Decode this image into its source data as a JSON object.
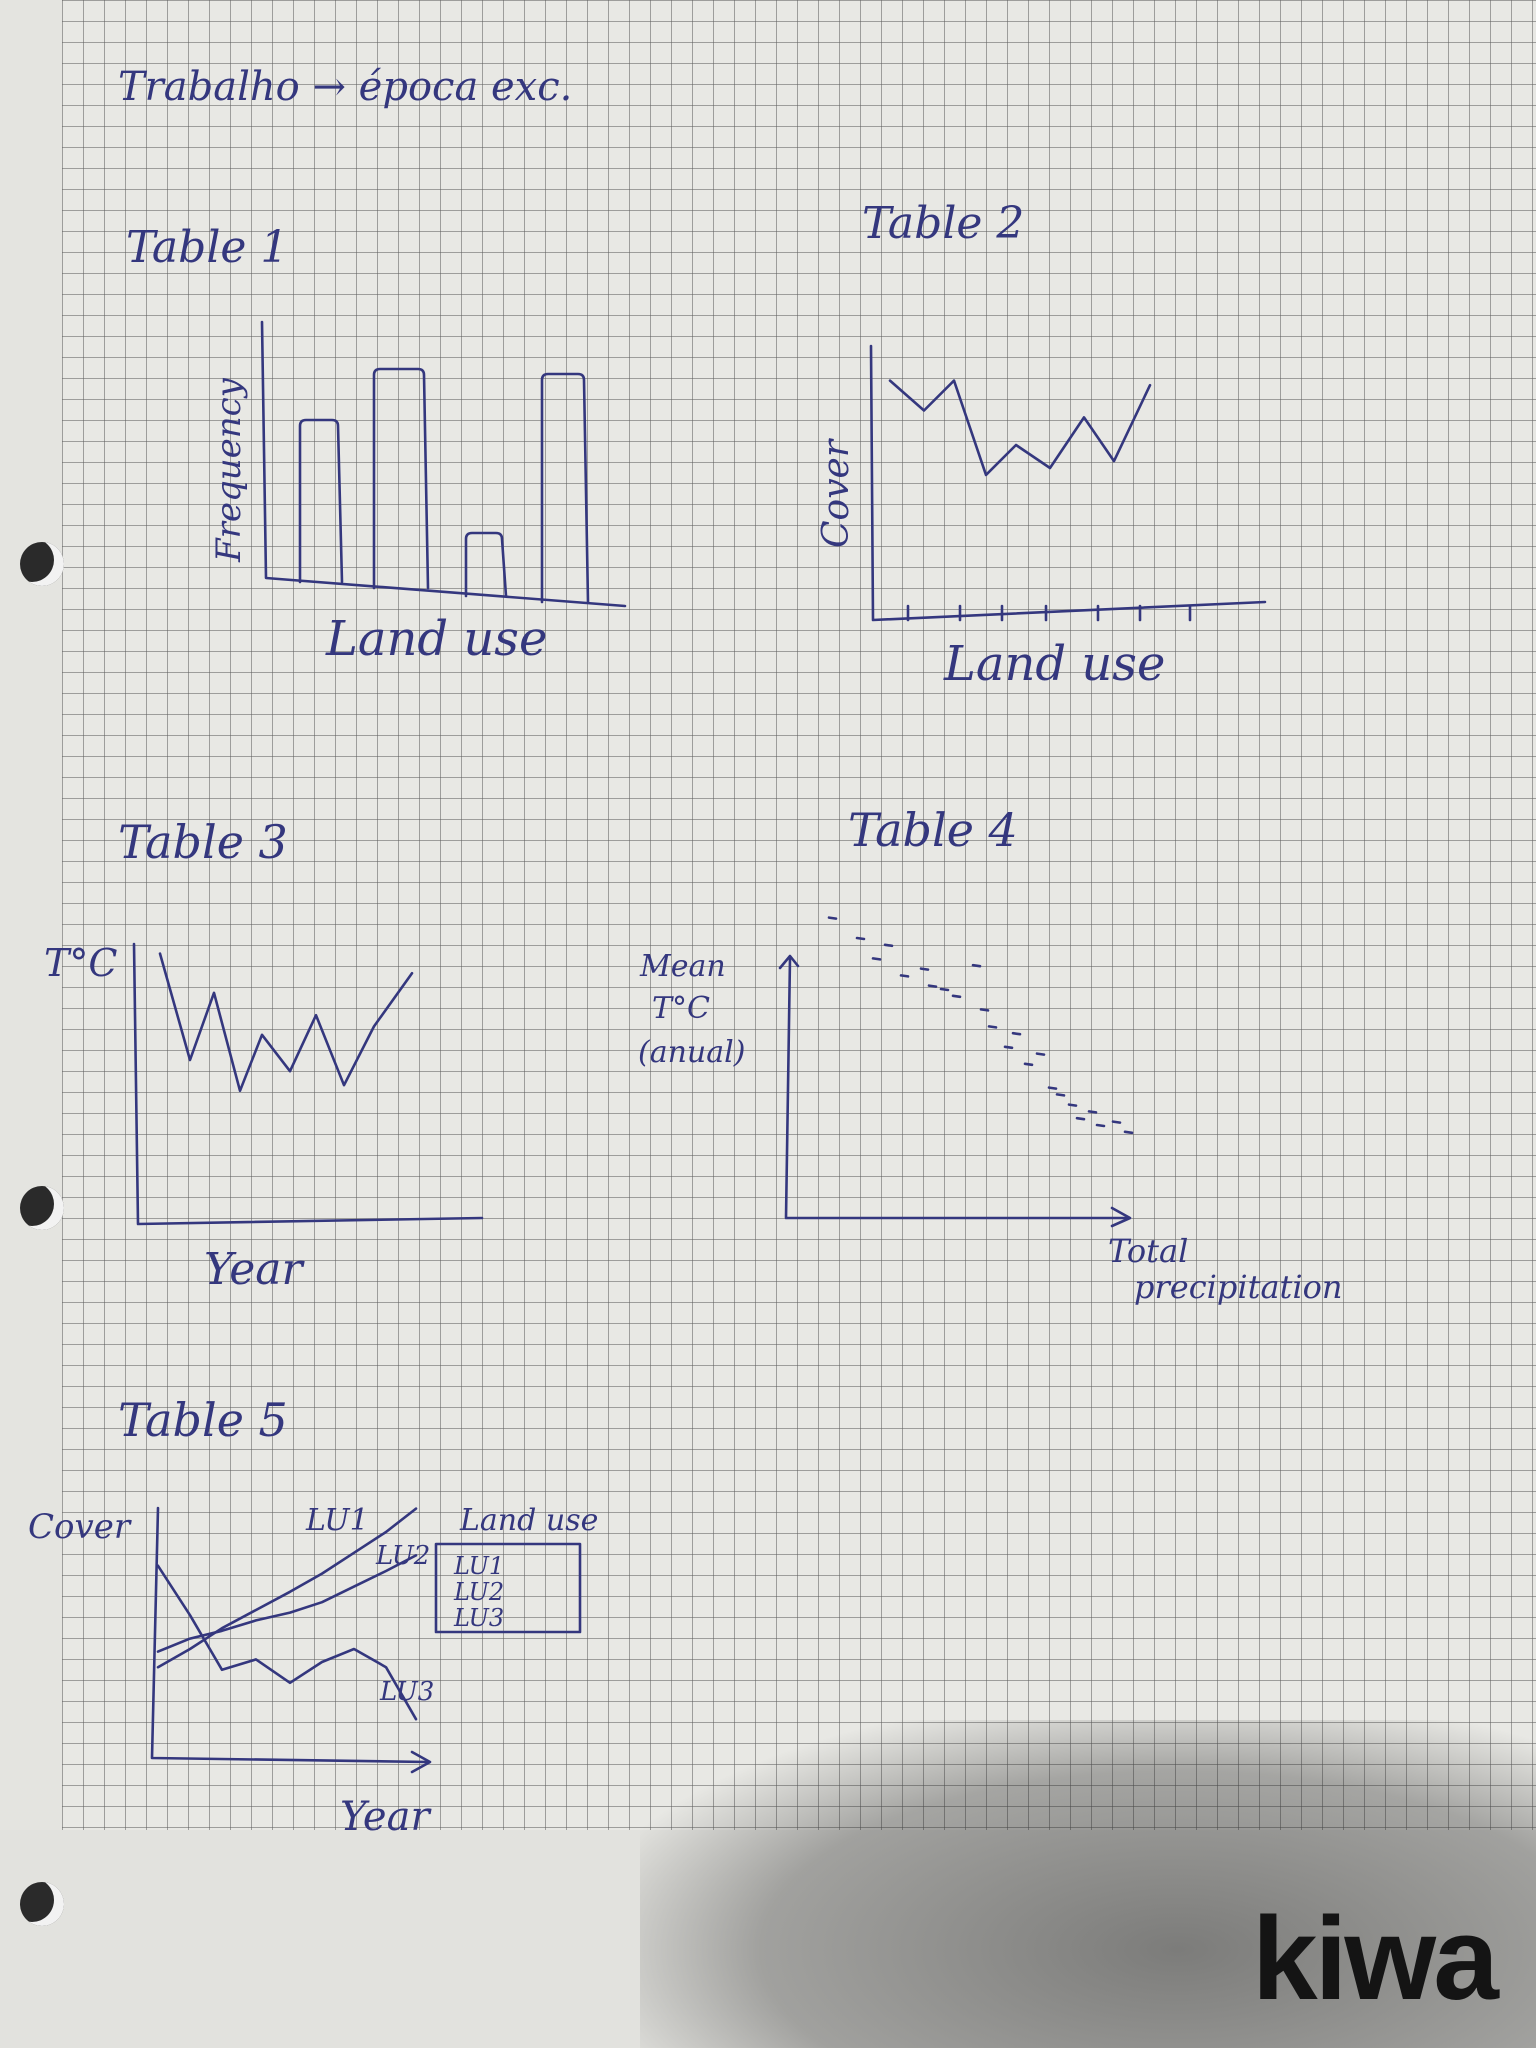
{
  "heading": "Trabalho → época exc.",
  "tables": [
    {
      "title": "Table 1",
      "ylabel": "Frequency",
      "xlabel": "Land use"
    },
    {
      "title": "Table 2",
      "ylabel": "Cover",
      "xlabel": "Land use"
    },
    {
      "title": "Table 3",
      "ylabel": "T°C",
      "xlabel": "Year"
    },
    {
      "title": "Table 4",
      "ylabel_lines": [
        "Mean",
        "T°C",
        "(anual)"
      ],
      "xlabel_lines": [
        "Total",
        "precipitation"
      ]
    },
    {
      "title": "Table 5",
      "ylabel": "Cover",
      "xlabel": "Year",
      "series_labels": [
        "LU1",
        "LU2",
        "LU3"
      ],
      "legend": {
        "title": "Land use",
        "items": [
          "LU1",
          "LU2",
          "LU3"
        ]
      }
    }
  ],
  "logo": "kiwa",
  "colors": {
    "ink": "#34377e",
    "paper": "#e8e8e4",
    "grid": "#5f5f5f"
  },
  "chart_data": [
    {
      "type": "bar",
      "title": "Table 1",
      "xlabel": "Land use",
      "ylabel": "Frequency",
      "categories": [
        "",
        "",
        "",
        ""
      ],
      "values": [
        5.4,
        7.3,
        2.1,
        7.6
      ]
    },
    {
      "type": "line",
      "title": "Table 2",
      "xlabel": "Land use",
      "ylabel": "Cover",
      "x": [
        1,
        2,
        3,
        4,
        5,
        6,
        7,
        8,
        9
      ],
      "series": [
        {
          "values": [
            7.8,
            6.5,
            7.8,
            3.7,
            5.0,
            4.0,
            6.2,
            4.3,
            7.6
          ]
        }
      ]
    },
    {
      "type": "line",
      "title": "Table 3",
      "xlabel": "Year",
      "ylabel": "T°C",
      "x": [
        1,
        2,
        3,
        4,
        5,
        6,
        7,
        8,
        9,
        10
      ],
      "series": [
        {
          "values": [
            7.8,
            4.0,
            6.4,
            2.9,
            4.9,
            3.6,
            5.6,
            3.1,
            5.2,
            7.1
          ]
        }
      ]
    },
    {
      "type": "scatter",
      "title": "Table 4",
      "xlabel": "Total precipitation",
      "ylabel": "Mean T°C (anual)",
      "x": [
        0.5,
        1.2,
        1.6,
        1.9,
        2.3,
        2.8,
        3.0,
        3.3,
        3.6,
        4.1,
        4.3,
        4.5,
        4.9,
        5.1,
        5.4,
        5.7,
        6.0,
        6.2,
        6.5,
        6.7,
        7.0,
        7.2,
        7.6,
        7.9
      ],
      "y": [
        8.6,
        8.0,
        7.4,
        7.8,
        6.9,
        7.1,
        6.6,
        6.5,
        6.3,
        7.2,
        5.9,
        5.4,
        4.8,
        5.2,
        4.3,
        4.6,
        3.6,
        3.4,
        3.1,
        2.7,
        2.9,
        2.5,
        2.6,
        2.3
      ]
    },
    {
      "type": "line",
      "title": "Table 5",
      "xlabel": "Year",
      "ylabel": "Cover",
      "legend_title": "Land use",
      "legend_placement": "right",
      "x": [
        0,
        1,
        2,
        3,
        4,
        5,
        6,
        7,
        8
      ],
      "series": [
        {
          "name": "LU1",
          "values": [
            2.8,
            3.5,
            4.3,
            5.0,
            5.7,
            6.4,
            7.2,
            8.0,
            8.9
          ]
        },
        {
          "name": "LU2",
          "values": [
            3.4,
            3.9,
            4.2,
            4.6,
            4.9,
            5.3,
            5.9,
            6.5,
            7.1
          ]
        },
        {
          "name": "LU3",
          "values": [
            6.7,
            4.8,
            2.7,
            3.1,
            2.2,
            3.0,
            3.5,
            2.8,
            0.8
          ]
        }
      ]
    }
  ]
}
